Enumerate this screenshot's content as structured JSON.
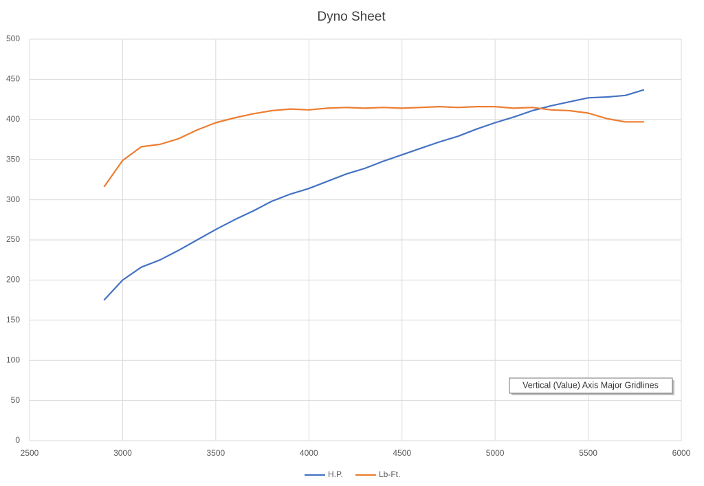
{
  "chart_data": {
    "type": "line",
    "title": "Dyno Sheet",
    "x": [
      2900,
      3000,
      3100,
      3200,
      3300,
      3400,
      3500,
      3600,
      3700,
      3800,
      3900,
      4000,
      4100,
      4200,
      4300,
      4400,
      4500,
      4600,
      4700,
      4800,
      4900,
      5000,
      5100,
      5200,
      5300,
      5400,
      5500,
      5600,
      5700,
      5800
    ],
    "series": [
      {
        "name": "H.P.",
        "color": "#4472c4",
        "values": [
          175,
          200,
          216,
          225,
          237,
          250,
          263,
          275,
          286,
          298,
          307,
          314,
          323,
          332,
          339,
          348,
          356,
          364,
          372,
          379,
          388,
          396,
          403,
          411,
          417,
          422,
          427,
          428,
          430,
          437
        ]
      },
      {
        "name": "Lb-Ft.",
        "color": "#ed7d31",
        "values": [
          316,
          349,
          366,
          369,
          376,
          387,
          396,
          402,
          407,
          411,
          413,
          412,
          414,
          415,
          414,
          415,
          414,
          415,
          416,
          415,
          416,
          416,
          414,
          415,
          412,
          411,
          408,
          401,
          397,
          397
        ]
      }
    ],
    "xlim": [
      2500,
      6000
    ],
    "xticks": [
      2500,
      3000,
      3500,
      4000,
      4500,
      5000,
      5500,
      6000
    ],
    "ylim": [
      0,
      500
    ],
    "yticks": [
      0,
      50,
      100,
      150,
      200,
      250,
      300,
      350,
      400,
      450,
      500
    ],
    "grid": true,
    "legend": "bottom",
    "tooltip": "Vertical (Value) Axis Major Gridlines"
  }
}
